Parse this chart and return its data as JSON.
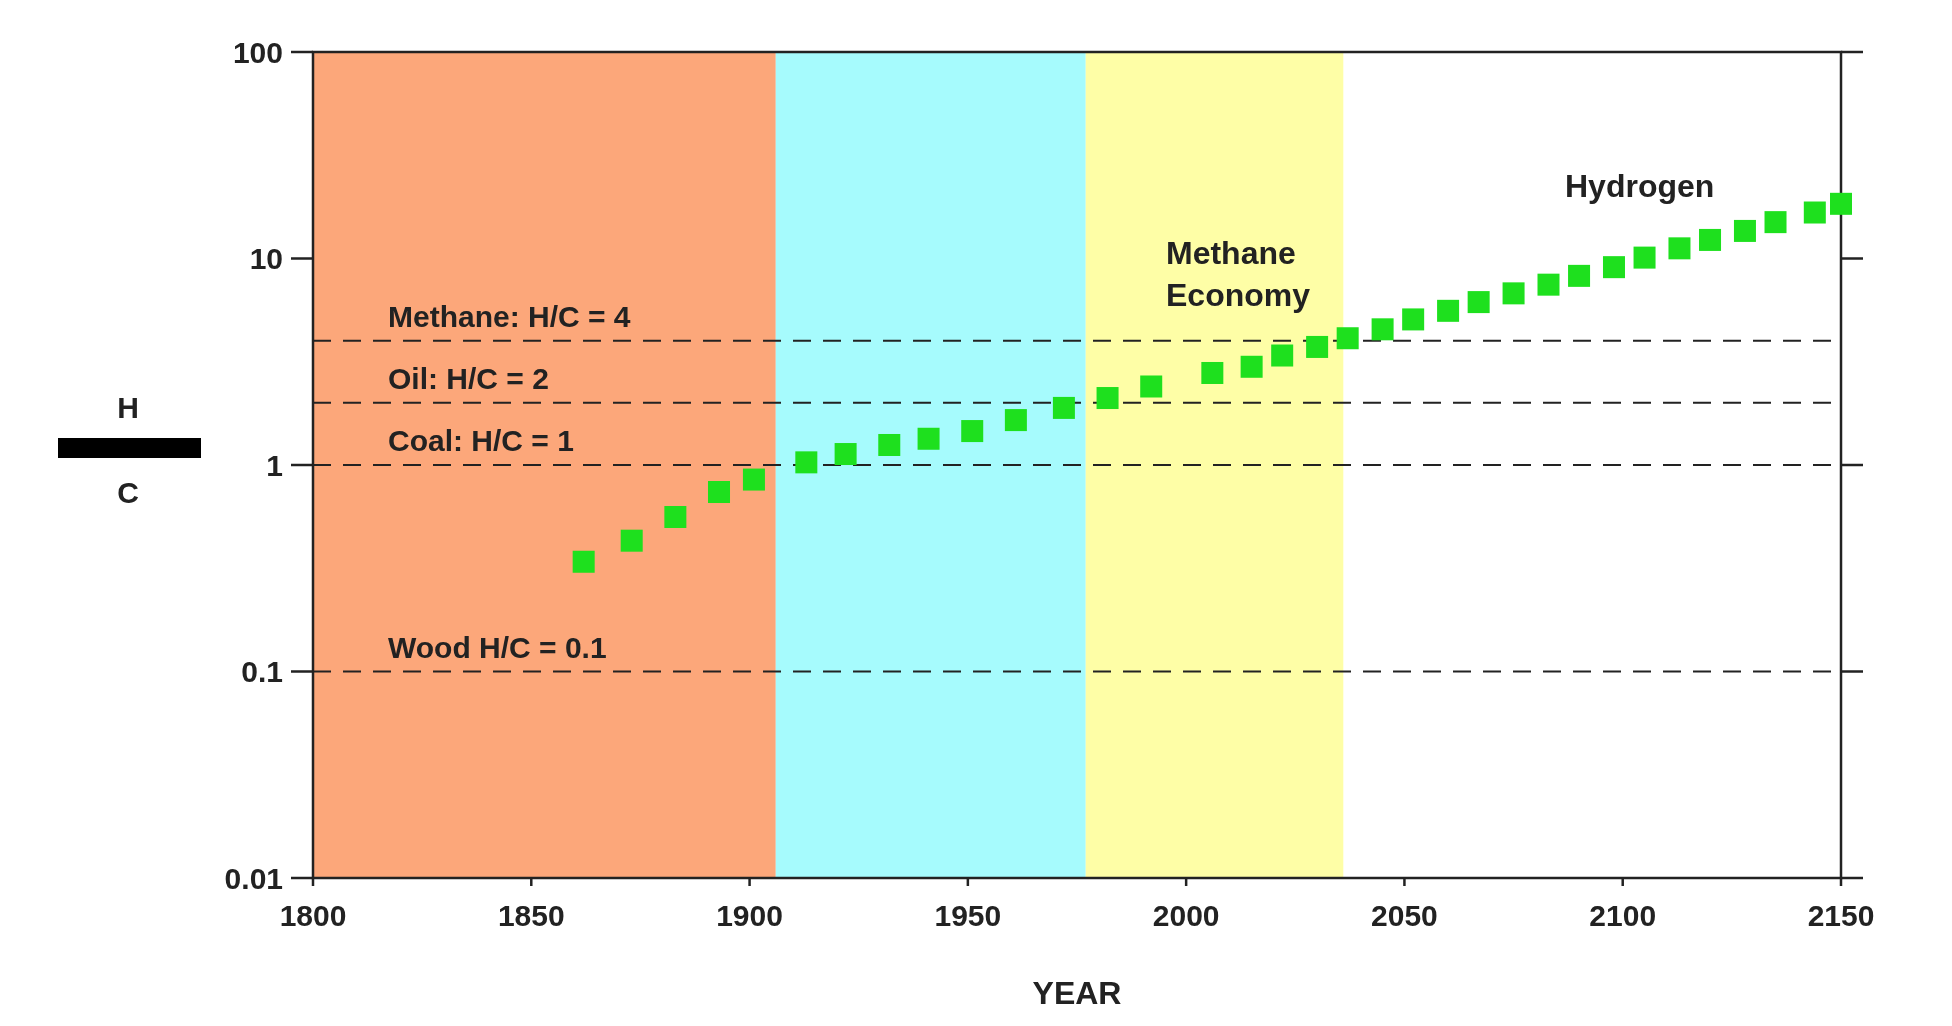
{
  "chart_data": {
    "type": "scatter",
    "xlabel": "YEAR",
    "ylabel": "H\nC",
    "log": "y",
    "xlim": [
      1800,
      2150
    ],
    "xticks": [
      1800,
      1850,
      1900,
      1950,
      2000,
      2050,
      2100,
      2150
    ],
    "ylim": [
      0.01,
      100
    ],
    "yticks": [
      0.01,
      0.1,
      1,
      10,
      100
    ],
    "grid": false,
    "marker": "square",
    "x": [
      1862,
      1873,
      1883,
      1893,
      1901,
      1913,
      1922,
      1932,
      1941,
      1951,
      1961,
      1972,
      1982,
      1992,
      2006,
      2015,
      2022,
      2030,
      2037,
      2045,
      2052,
      2060,
      2067,
      2075,
      2083,
      2090,
      2098,
      2105,
      2113,
      2120,
      2128,
      2135,
      2144,
      2150
    ],
    "series": [
      {
        "color": "#1ee01e",
        "values": [
          0.34,
          0.43,
          0.56,
          0.74,
          0.85,
          1.03,
          1.13,
          1.25,
          1.34,
          1.46,
          1.65,
          1.89,
          2.11,
          2.4,
          2.79,
          2.99,
          3.39,
          3.73,
          4.11,
          4.54,
          5.07,
          5.58,
          6.15,
          6.78,
          7.47,
          8.24,
          9.08,
          10.1,
          11.2,
          12.3,
          13.6,
          15.0,
          16.7,
          18.4
        ]
      }
    ],
    "bands": [
      {
        "axis": "x",
        "from": 1800,
        "to": 1906,
        "color": "#fca77a"
      },
      {
        "axis": "x",
        "from": 1906,
        "to": 1977,
        "color": "#a6fbfd"
      },
      {
        "axis": "x",
        "from": 1977,
        "to": 2036,
        "color": "#fefea6"
      }
    ],
    "ref_lines": [
      {
        "axis": "y",
        "value": 4,
        "label": "Methane: H/C = 4",
        "line_style": "dashed"
      },
      {
        "axis": "y",
        "value": 2,
        "label": "Oil: H/C = 2",
        "line_style": "dashed"
      },
      {
        "axis": "y",
        "value": 1,
        "label": "Coal: H/C = 1",
        "line_style": "dashed"
      },
      {
        "axis": "y",
        "value": 0.1,
        "label": "Wood H/C = 0.1",
        "line_style": "dashed"
      }
    ],
    "annotations": [
      "Methane\nEconomy",
      "Hydrogen"
    ]
  }
}
